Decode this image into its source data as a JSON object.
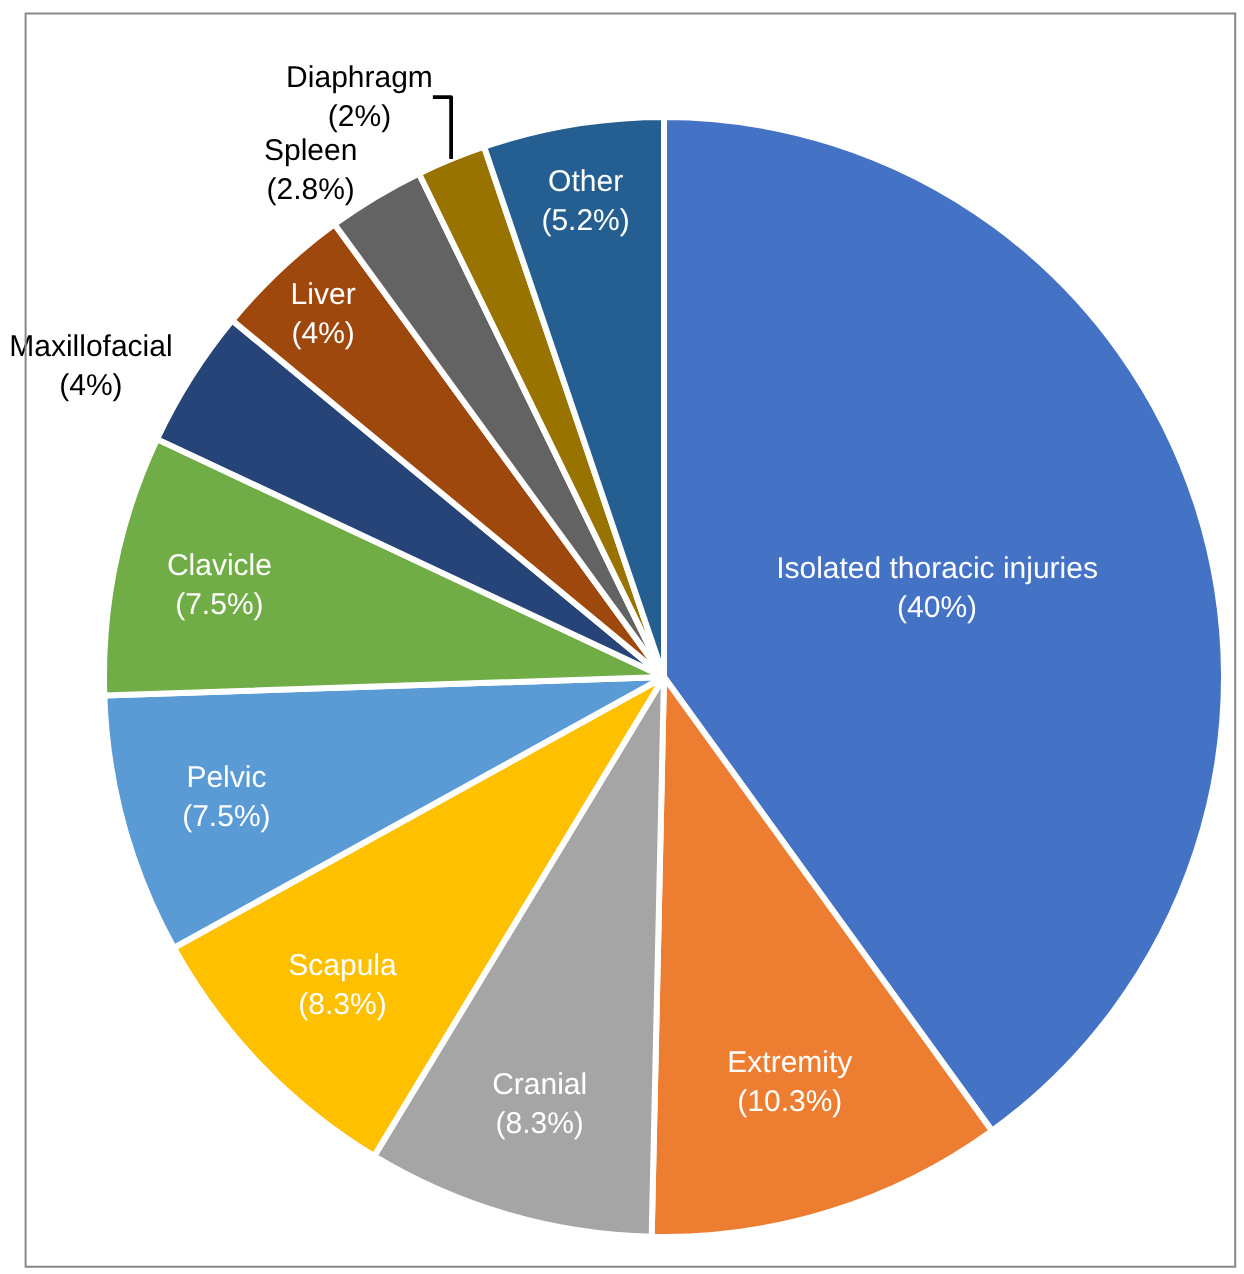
{
  "chart_data": {
    "type": "pie",
    "categories": [
      "Isolated thoracic injuries",
      "Extremity",
      "Cranial",
      "Scapula",
      "Pelvic",
      "Clavicle",
      "Maxillofacial",
      "Liver",
      "Spleen",
      "Diaphragm",
      "Other"
    ],
    "values": [
      40,
      10.3,
      8.3,
      8.3,
      7.5,
      7.5,
      4,
      4,
      2.8,
      2,
      5.2
    ],
    "value_labels": [
      "(40%)",
      "(10.3%)",
      "(8.3%)",
      "(8.3%)",
      "(7.5%)",
      "(7.5%)",
      "(4%)",
      "(4%)",
      "(2.8%)",
      "(2%)",
      "(5.2%)"
    ],
    "colors": [
      "#4472c4",
      "#ed7d31",
      "#a5a5a5",
      "#ffc000",
      "#5b9bd5",
      "#70ad47",
      "#264478",
      "#9e480e",
      "#636363",
      "#997300",
      "#255e91"
    ],
    "legend": false
  }
}
